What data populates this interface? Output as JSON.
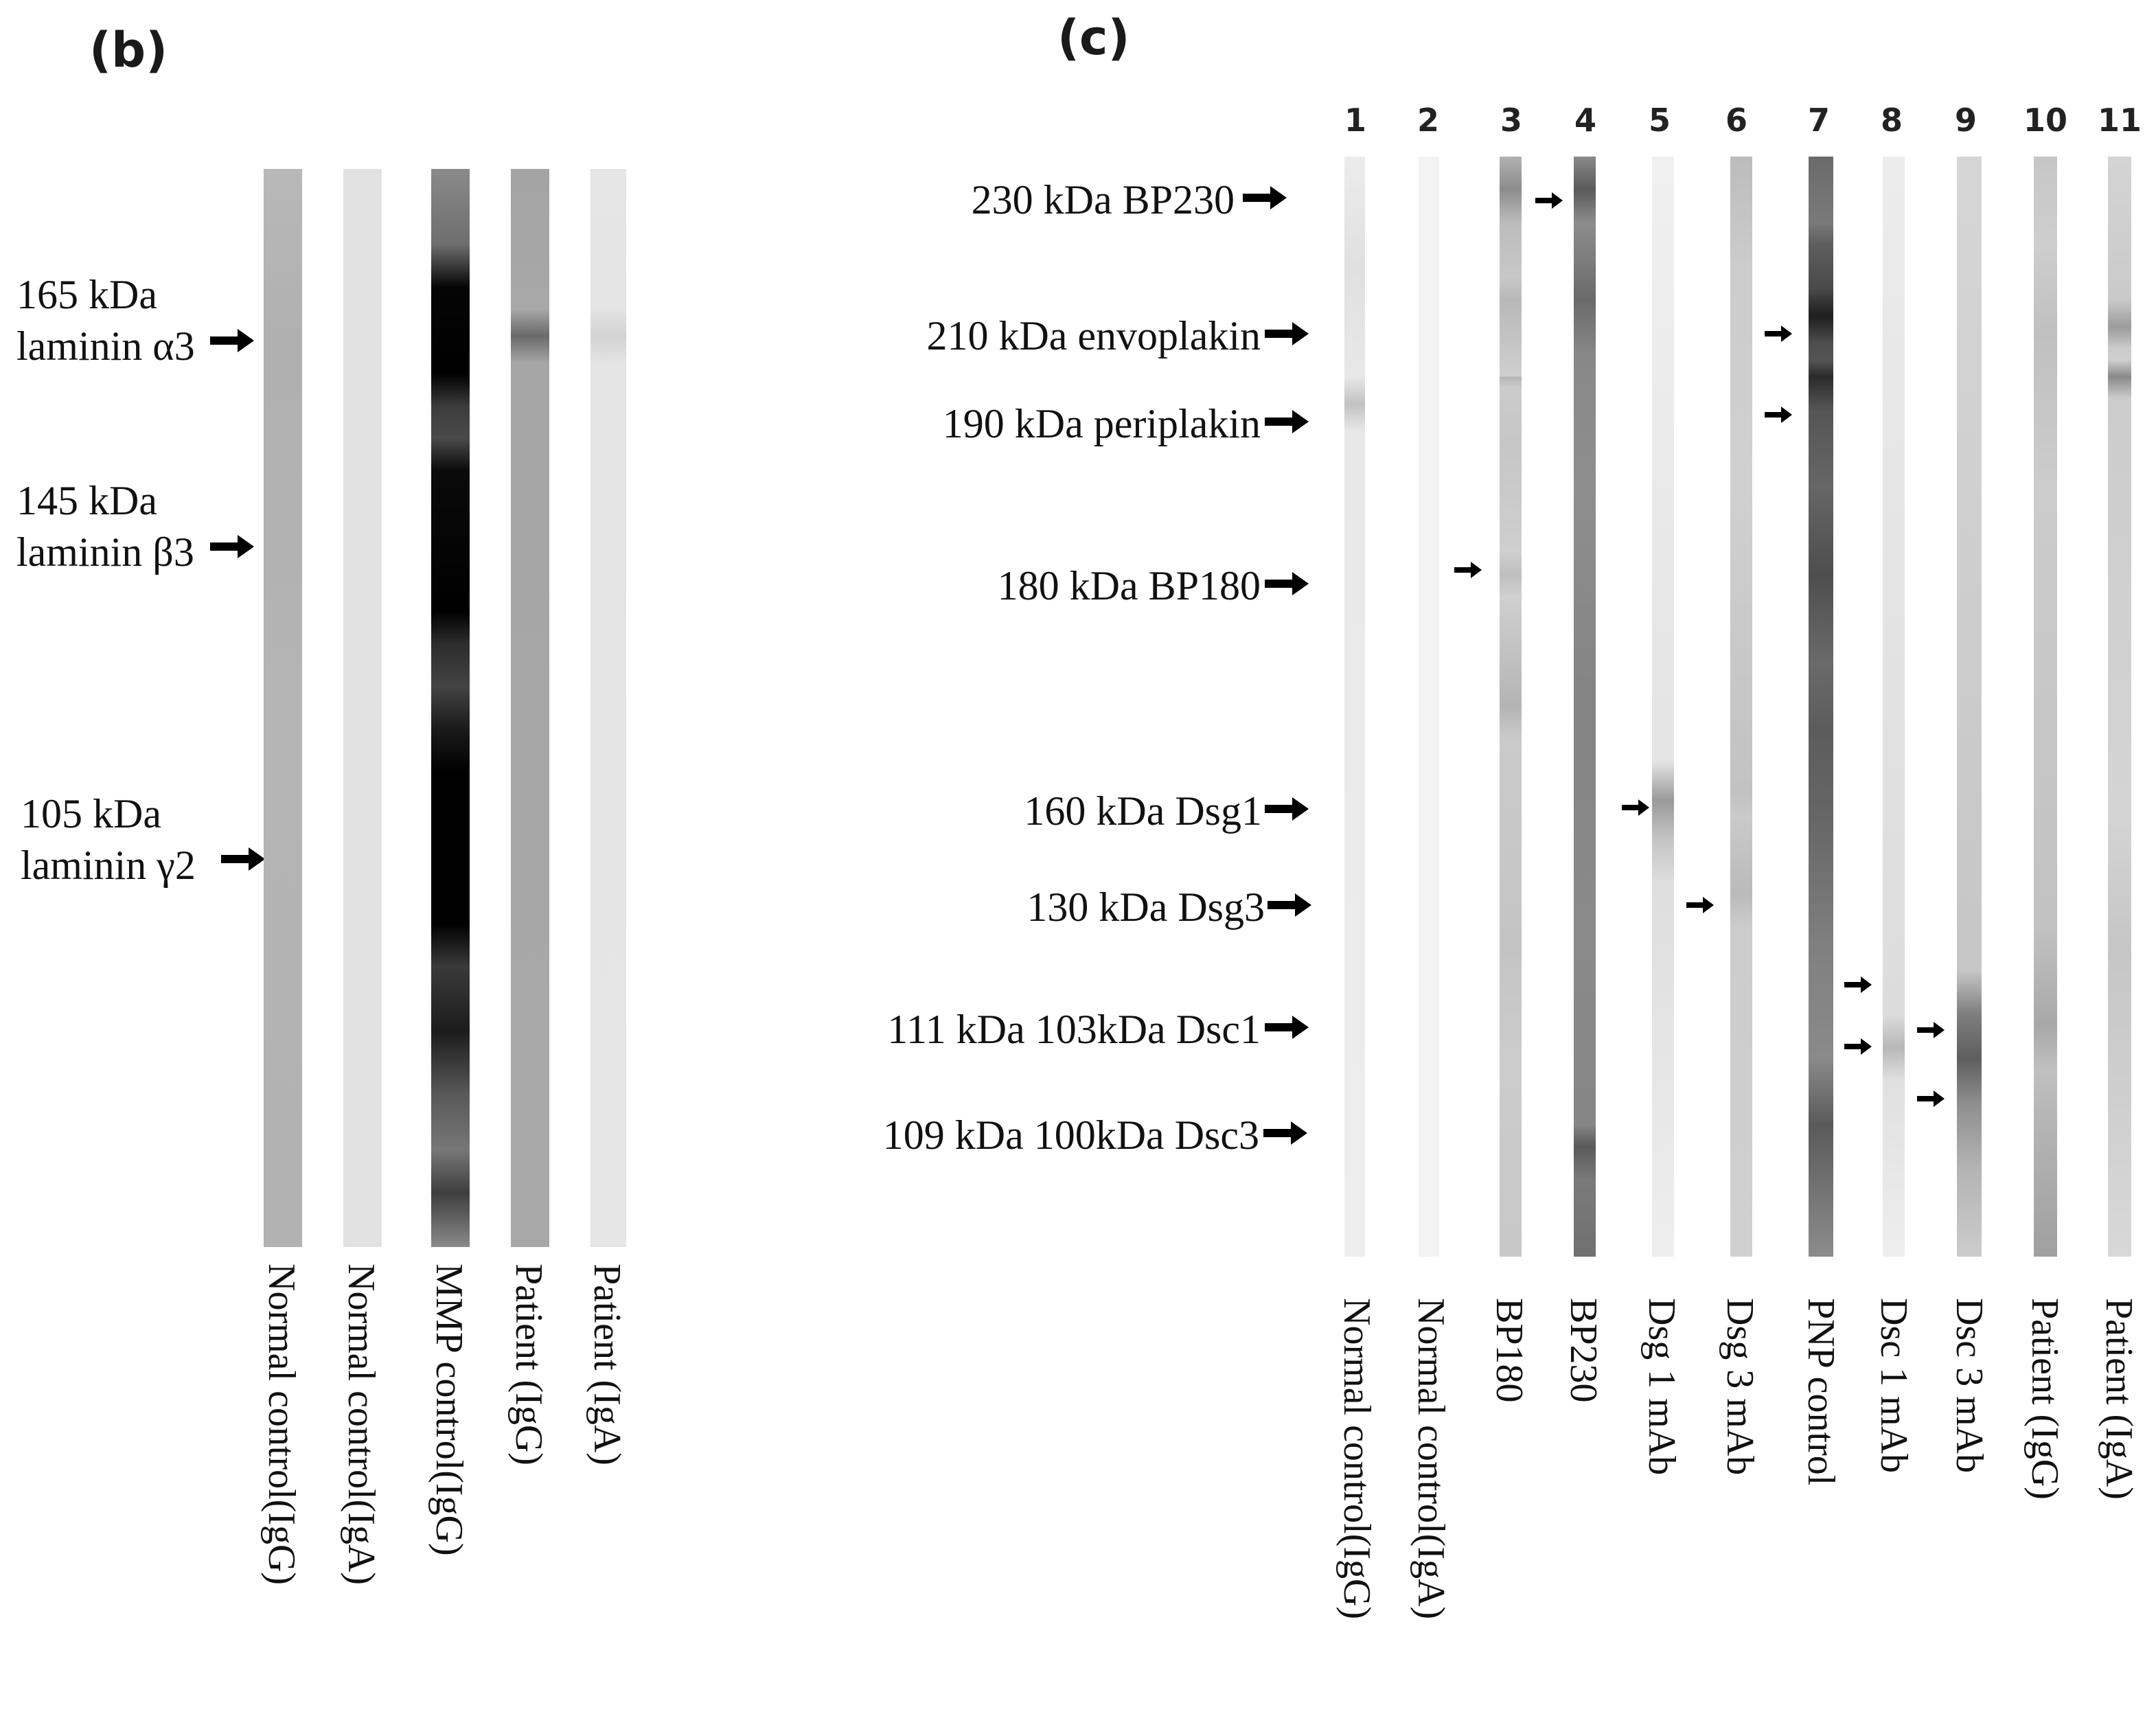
{
  "panel_b": {
    "letter": "(b)",
    "markers": [
      {
        "line1": "165 kDa",
        "line2": "laminin α3"
      },
      {
        "line1": "145 kDa",
        "line2": "laminin β3"
      },
      {
        "line1": "105 kDa",
        "line2": "laminin γ2"
      }
    ],
    "lanes": [
      {
        "label": "Normal control(IgG)"
      },
      {
        "label": "Normal control(IgA)"
      },
      {
        "label": "MMP control(IgG)"
      },
      {
        "label": "Patient (IgG)"
      },
      {
        "label": "Patient (IgA)"
      }
    ]
  },
  "panel_c": {
    "letter": "(c)",
    "markers": [
      {
        "text": "230 kDa BP230"
      },
      {
        "text": "210 kDa envoplakin"
      },
      {
        "text": "190 kDa periplakin"
      },
      {
        "text": "180 kDa BP180"
      },
      {
        "text": "160 kDa Dsg1"
      },
      {
        "text": "130 kDa Dsg3"
      },
      {
        "text": "111 kDa 103kDa Dsc1"
      },
      {
        "text": "109 kDa 100kDa Dsc3"
      }
    ],
    "lanes": [
      {
        "number": "1",
        "label": "Normal control(IgG)"
      },
      {
        "number": "2",
        "label": "Normal control(IgA)"
      },
      {
        "number": "3",
        "label": "BP180"
      },
      {
        "number": "4",
        "label": "BP230"
      },
      {
        "number": "5",
        "label": "Dsg 1 mAb"
      },
      {
        "number": "6",
        "label": "Dsg 3 mAb"
      },
      {
        "number": "7",
        "label": "PNP control"
      },
      {
        "number": "8",
        "label": "Dsc 1 mAb"
      },
      {
        "number": "9",
        "label": "Dsc 3 mAb"
      },
      {
        "number": "10",
        "label": "Patient (IgG)"
      },
      {
        "number": "11",
        "label": "Patient (IgA)"
      }
    ]
  },
  "colors": {
    "text": "#111111",
    "arrow": "#000000",
    "background": "#ffffff"
  }
}
